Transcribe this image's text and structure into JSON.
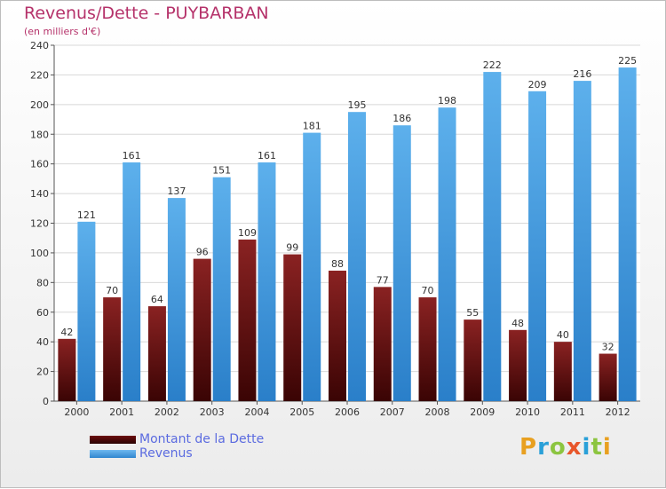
{
  "title": "Revenus/Dette - PUYBARBAN",
  "subtitle": "(en milliers d'€)",
  "legend": [
    {
      "name": "Montant de la Dette",
      "color": "#6b0c0c"
    },
    {
      "name": "Revenus",
      "color": "#4a9fe3"
    }
  ],
  "brand": {
    "text": "Proxiti",
    "colors": [
      "#e8a020",
      "#2aa0d8",
      "#8cc540",
      "#e8562a",
      "#2aa0d8",
      "#8cc540",
      "#e8a020"
    ]
  },
  "chart_data": {
    "type": "bar",
    "categories": [
      "2000",
      "2001",
      "2002",
      "2003",
      "2004",
      "2005",
      "2006",
      "2007",
      "2008",
      "2009",
      "2010",
      "2011",
      "2012"
    ],
    "series": [
      {
        "name": "Montant de la Dette",
        "color": "#6b0c0c",
        "values": [
          42,
          70,
          64,
          96,
          109,
          99,
          88,
          77,
          70,
          55,
          48,
          40,
          32
        ]
      },
      {
        "name": "Revenus",
        "color": "#4a9fe3",
        "values": [
          121,
          161,
          137,
          151,
          161,
          181,
          195,
          186,
          198,
          222,
          209,
          216,
          225
        ]
      }
    ],
    "ylim": [
      0,
      240
    ],
    "yticks": [
      0,
      20,
      40,
      60,
      80,
      100,
      120,
      140,
      160,
      180,
      200,
      220,
      240
    ],
    "grid": true,
    "legend_position": "bottom-left"
  }
}
